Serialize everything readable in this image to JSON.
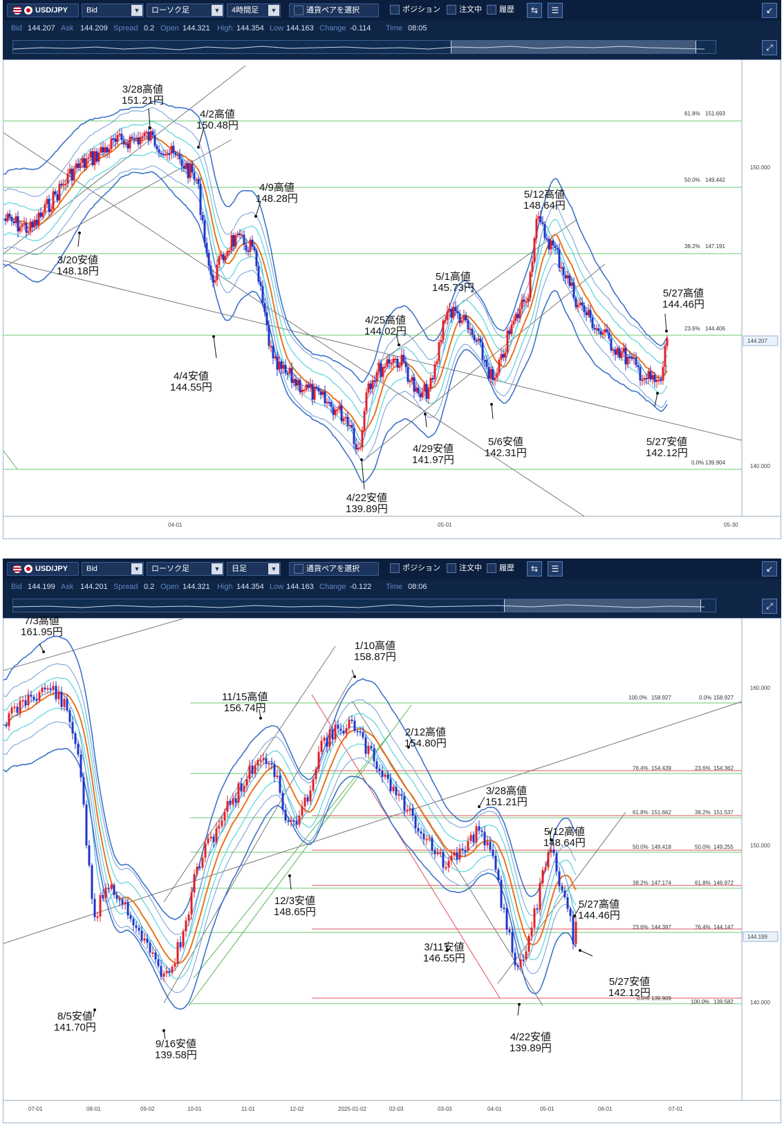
{
  "panels": [
    {
      "symbol": "USD/JPY",
      "price_type": "Bid",
      "chart_type": "ローソク足",
      "timeframe": "4時間足",
      "pair_select": "通貨ペアを選択",
      "checks": [
        "ポジション",
        "注文中",
        "履歴"
      ],
      "quote": {
        "bid_label": "Bid",
        "bid": "144.207",
        "ask_label": "Ask",
        "ask": "144.209",
        "spread_label": "Spread",
        "spread": "0.2",
        "open_label": "Open",
        "open": "144.321",
        "high_label": "High",
        "high": "144.354",
        "low_label": "Low",
        "low": "144.163",
        "change_label": "Change",
        "change": "-0.114",
        "time_label": "Time",
        "time": "08:05"
      },
      "price_axis": [
        "150.000",
        "140.000"
      ],
      "current_price": "144.207",
      "date_axis": [
        "04-01",
        "05-01",
        "05-30"
      ],
      "fib_levels": [
        {
          "label": "61.8%",
          "value": "151.693"
        },
        {
          "label": "50.0%",
          "value": "149.442"
        },
        {
          "label": "38.2%",
          "value": "147.191"
        },
        {
          "label": "23.6%",
          "value": "144.406"
        },
        {
          "label": "0.0%",
          "value": "139.904"
        }
      ],
      "annotations": [
        {
          "line1": "3/28高値",
          "line2": "151.21円"
        },
        {
          "line1": "4/2高値",
          "line2": "150.48円"
        },
        {
          "line1": "4/9高値",
          "line2": "148.28円"
        },
        {
          "line1": "3/20安値",
          "line2": "148.18円"
        },
        {
          "line1": "4/4安値",
          "line2": "144.55円"
        },
        {
          "line1": "4/25高値",
          "line2": "144.02円"
        },
        {
          "line1": "5/1高値",
          "line2": "145.73円"
        },
        {
          "line1": "5/12高値",
          "line2": "148.64円"
        },
        {
          "line1": "5/27高値",
          "line2": "144.46円"
        },
        {
          "line1": "4/29安値",
          "line2": "141.97円"
        },
        {
          "line1": "5/6安値",
          "line2": "142.31円"
        },
        {
          "line1": "5/27安値",
          "line2": "142.12円"
        },
        {
          "line1": "4/22安値",
          "line2": "139.89円"
        }
      ]
    },
    {
      "symbol": "USD/JPY",
      "price_type": "Bid",
      "chart_type": "ローソク足",
      "timeframe": "日足",
      "pair_select": "通貨ペアを選択",
      "checks": [
        "ポジション",
        "注文中",
        "履歴"
      ],
      "quote": {
        "bid_label": "Bid",
        "bid": "144.199",
        "ask_label": "Ask",
        "ask": "144.201",
        "spread_label": "Spread",
        "spread": "0.2",
        "open_label": "Open",
        "open": "144.321",
        "high_label": "High",
        "high": "144.354",
        "low_label": "Low",
        "low": "144.163",
        "change_label": "Change",
        "change": "-0.122",
        "time_label": "Time",
        "time": "08:06"
      },
      "price_axis": [
        "160.000",
        "150.000",
        "140.000"
      ],
      "current_price": "144.199",
      "date_axis": [
        "07-01",
        "08-01",
        "09-02",
        "10-01",
        "11-01",
        "12-02",
        "2025-01-02",
        "02-03",
        "03-03",
        "04-01",
        "05-01",
        "06-01",
        "07-01"
      ],
      "fib_left": [
        {
          "label": "100.0%",
          "value": "158.927"
        },
        {
          "label": "76.4%",
          "value": "154.439"
        },
        {
          "label": "61.8%",
          "value": "151.662"
        },
        {
          "label": "50.0%",
          "value": "149.418"
        },
        {
          "label": "38.2%",
          "value": "147.174"
        },
        {
          "label": "23.6%",
          "value": "144.397"
        },
        {
          "label": "0.0%",
          "value": "139.909"
        }
      ],
      "fib_right": [
        {
          "label": "0.0%",
          "value": "158.927"
        },
        {
          "label": "23.6%",
          "value": "154.362"
        },
        {
          "label": "38.2%",
          "value": "151.537"
        },
        {
          "label": "50.0%",
          "value": "149.255"
        },
        {
          "label": "61.8%",
          "value": "146.972"
        },
        {
          "label": "76.4%",
          "value": "144.147"
        },
        {
          "label": "100.0%",
          "value": "139.582"
        }
      ],
      "annotations": [
        {
          "line1": "7/3高値",
          "line2": "161.95円"
        },
        {
          "line1": "1/10高値",
          "line2": "158.87円"
        },
        {
          "line1": "11/15高値",
          "line2": "156.74円"
        },
        {
          "line1": "2/12高値",
          "line2": "154.80円"
        },
        {
          "line1": "3/28高値",
          "line2": "151.21円"
        },
        {
          "line1": "5/12高値",
          "line2": "148.64円"
        },
        {
          "line1": "12/3安値",
          "line2": "148.65円"
        },
        {
          "line1": "5/27高値",
          "line2": "144.46円"
        },
        {
          "line1": "3/11安値",
          "line2": "146.55円"
        },
        {
          "line1": "5/27安値",
          "line2": "142.12円"
        },
        {
          "line1": "8/5安値",
          "line2": "141.70円"
        },
        {
          "line1": "9/16安値",
          "line2": "139.58円"
        },
        {
          "line1": "4/22安値",
          "line2": "139.89円"
        }
      ]
    }
  ]
}
